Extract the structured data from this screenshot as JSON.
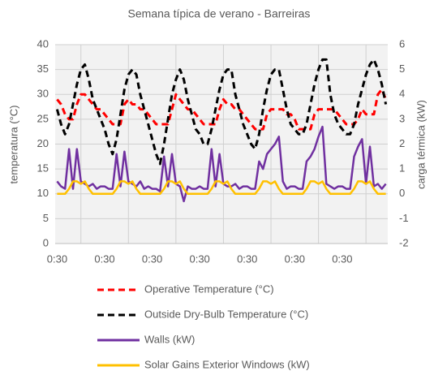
{
  "chart_data": {
    "type": "line",
    "title": "Semana típica de verano - Barreiras",
    "ylabel": "temperatura (°C)",
    "y2label": "carga térmica (kW)",
    "categories": [
      "0:30",
      null,
      null,
      null,
      null,
      null,
      null,
      null,
      null,
      null,
      null,
      null,
      "0:30",
      null,
      null,
      null,
      null,
      null,
      null,
      null,
      null,
      null,
      null,
      null,
      "0:30",
      null,
      null,
      null,
      null,
      null,
      null,
      null,
      null,
      null,
      null,
      null,
      "0:30",
      null,
      null,
      null,
      null,
      null,
      null,
      null,
      null,
      null,
      null,
      null,
      "0:30",
      null,
      null,
      null,
      null,
      null,
      null,
      null,
      null,
      null,
      null,
      null,
      "0:30",
      null,
      null,
      null,
      null,
      null,
      null,
      null,
      null,
      null,
      null,
      null,
      "0:30",
      null,
      null,
      null,
      null,
      null,
      null,
      null,
      null,
      null,
      null,
      null
    ],
    "ylim": [
      0,
      40
    ],
    "yticks": [
      0,
      5,
      10,
      15,
      20,
      25,
      30,
      35,
      40
    ],
    "y2lim": [
      -2,
      6
    ],
    "y2ticks": [
      -2,
      -1,
      0,
      1,
      2,
      3,
      4,
      5,
      6
    ],
    "grid": true,
    "series": [
      {
        "name": "Operative Temperature (°C)",
        "color": "#ff0000",
        "style": "dashed",
        "values": [
          29,
          28,
          26,
          25,
          25,
          28,
          30,
          30,
          29,
          28,
          27,
          27,
          26,
          25,
          24,
          24,
          24,
          28,
          29,
          28,
          28,
          27,
          27,
          26,
          25,
          24,
          24,
          24,
          24,
          27,
          30,
          29,
          28,
          27,
          27,
          26,
          25,
          24,
          24,
          24,
          24,
          27,
          29,
          28,
          28,
          27,
          27,
          26,
          25,
          24,
          23,
          23,
          23,
          26,
          27,
          27,
          27,
          27,
          26,
          26,
          25,
          23,
          23,
          23,
          23,
          26,
          27,
          27,
          27,
          27,
          27,
          26,
          25,
          24,
          24,
          24,
          25,
          27,
          26,
          26,
          26,
          30,
          31,
          29
        ]
      },
      {
        "name": "Outside Dry-Bulb Temperature (°C)",
        "color": "#000000",
        "style": "dashed",
        "values": [
          27,
          24,
          22,
          24,
          28,
          32,
          35,
          36,
          33,
          29,
          27,
          25,
          23,
          20,
          18,
          21,
          26,
          31,
          34,
          35,
          34,
          30,
          27,
          24,
          21,
          18,
          16,
          20,
          25,
          30,
          33,
          35,
          33,
          29,
          26,
          23,
          22,
          20,
          20,
          23,
          27,
          31,
          34,
          35,
          35,
          30,
          27,
          24,
          22,
          20,
          19,
          22,
          27,
          31,
          34,
          35,
          35,
          31,
          27,
          24,
          23,
          22,
          22,
          24,
          28,
          32,
          35,
          37,
          37,
          30,
          26,
          24,
          23,
          22,
          22,
          24,
          28,
          31,
          34,
          36,
          37,
          35,
          32,
          28
        ]
      },
      {
        "name": "Walls (kW)",
        "color": "#7030a0",
        "style": "solid",
        "axis": "y2",
        "values": [
          0.5,
          0.3,
          0.2,
          1.8,
          0.2,
          1.8,
          0.5,
          0.4,
          0.3,
          0.4,
          0.2,
          0.3,
          0.3,
          0.2,
          0.2,
          1.6,
          0.3,
          1.7,
          0.5,
          0.4,
          0.3,
          0.5,
          0.2,
          0.3,
          0.2,
          0.2,
          0.1,
          1.5,
          0.3,
          1.6,
          0.4,
          0.3,
          -0.3,
          0.3,
          0.2,
          0.2,
          0.3,
          0.2,
          0.2,
          1.8,
          0.3,
          1.6,
          0.4,
          0.3,
          0.3,
          0.4,
          0.2,
          0.3,
          0.3,
          0.2,
          0.2,
          1.3,
          1.0,
          1.6,
          1.8,
          2.0,
          2.3,
          0.5,
          0.2,
          0.3,
          0.3,
          0.2,
          0.2,
          1.3,
          1.5,
          1.8,
          2.3,
          2.7,
          0.4,
          0.3,
          0.2,
          0.3,
          0.3,
          0.2,
          0.2,
          1.5,
          1.9,
          2.2,
          0.4,
          1.9,
          0.3,
          0.4,
          0.2,
          0.4
        ]
      },
      {
        "name": "Solar Gains Exterior Windows (kW)",
        "color": "#ffc000",
        "style": "solid",
        "axis": "y2",
        "values": [
          0,
          0,
          0,
          0.2,
          0.5,
          0.5,
          0.4,
          0.5,
          0.2,
          0,
          0,
          0,
          0,
          0,
          0,
          0.2,
          0.5,
          0.5,
          0.4,
          0.5,
          0.2,
          0,
          0,
          0,
          0,
          0,
          0,
          0.2,
          0.5,
          0.5,
          0.4,
          0.5,
          0.2,
          0,
          0,
          0,
          0,
          0,
          0,
          0.2,
          0.5,
          0.5,
          0.4,
          0.5,
          0.2,
          0,
          0,
          0,
          0,
          0,
          0,
          0.2,
          0.5,
          0.5,
          0.4,
          0.5,
          0.2,
          0,
          0,
          0,
          0,
          0,
          0,
          0.2,
          0.5,
          0.5,
          0.4,
          0.5,
          0.2,
          0,
          0,
          0,
          0,
          0,
          0,
          0.2,
          0.5,
          0.5,
          0.4,
          0.5,
          0.2,
          0,
          0,
          0
        ]
      }
    ]
  }
}
